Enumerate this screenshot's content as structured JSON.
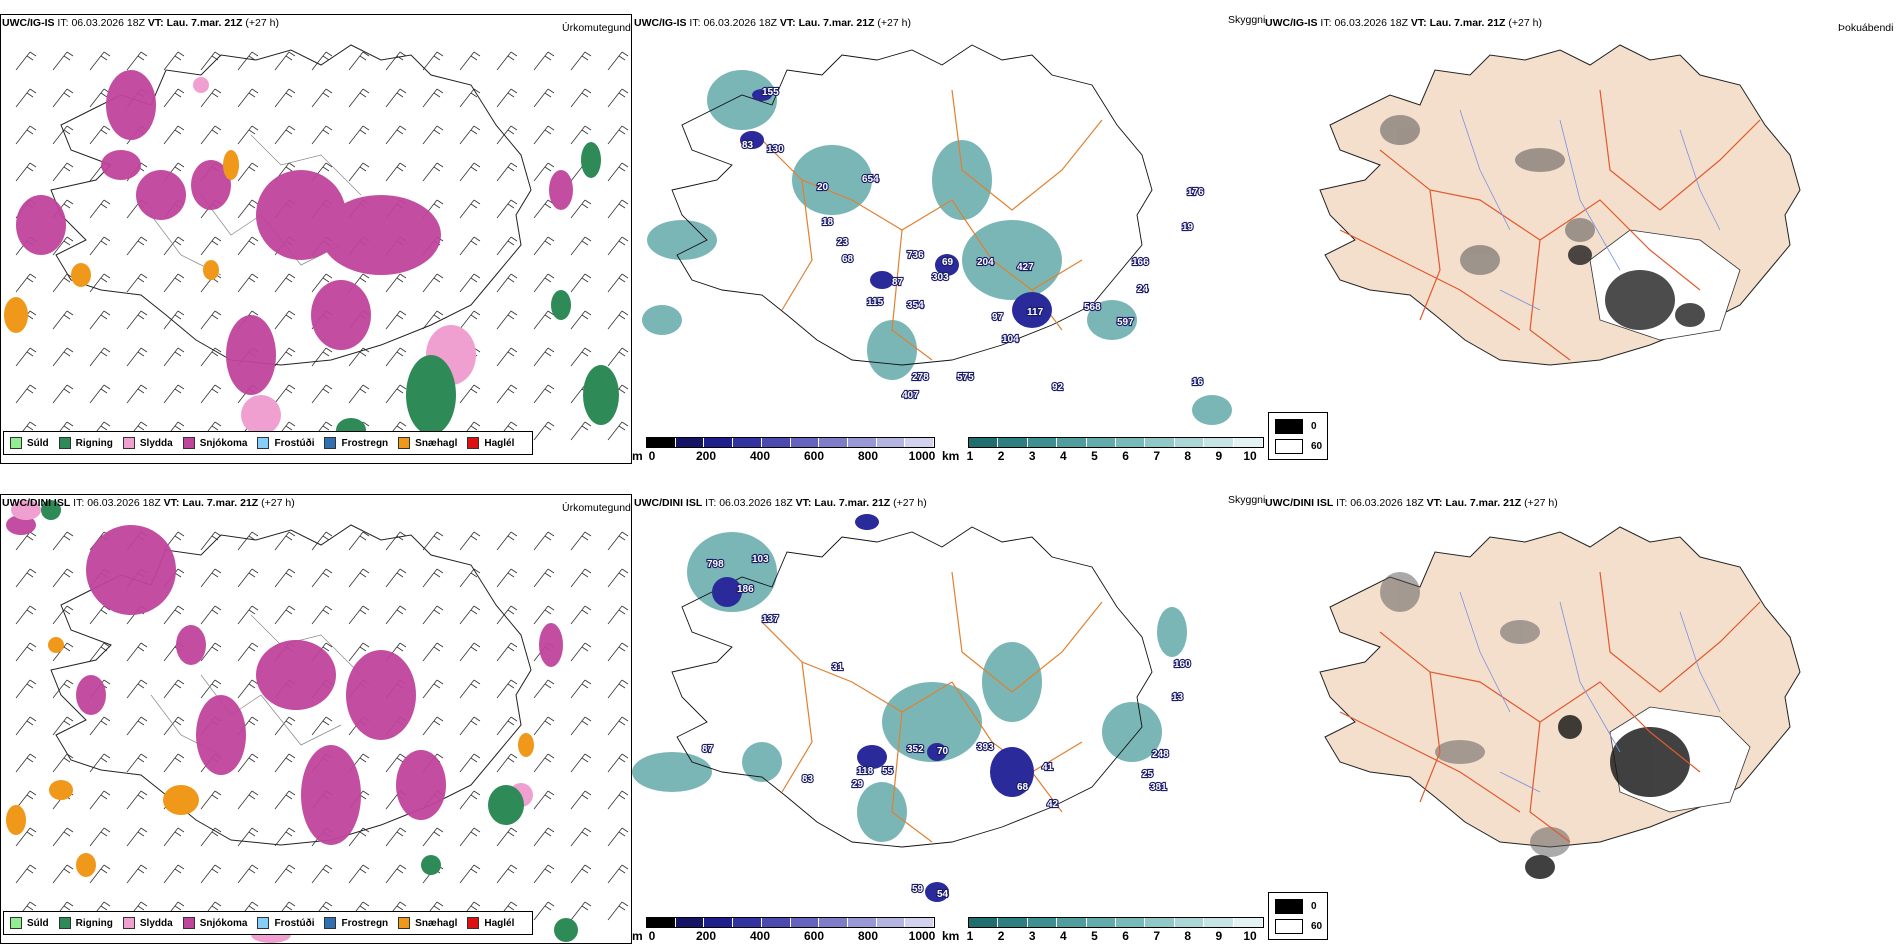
{
  "rows": [
    {
      "model": "UWC/IG-IS",
      "it_label": "IT:",
      "it_value": "06.03.2026 18Z",
      "vt_label": "VT:",
      "vt_value": "Lau. 7.mar. 21Z",
      "lead": "(+27 h)",
      "titles": {
        "precip": "Úrkomutegund",
        "cloud": "Skyggni",
        "fog": "Þokuábendi"
      },
      "labels": [
        "155",
        "83",
        "130",
        "20",
        "654",
        "18",
        "23",
        "68",
        "736",
        "69",
        "87",
        "303",
        "204",
        "427",
        "115",
        "354",
        "97",
        "117",
        "104",
        "568",
        "166",
        "597",
        "24",
        "278",
        "407",
        "575",
        "92",
        "16",
        "176",
        "19"
      ]
    },
    {
      "model": "UWC/DINI ISL",
      "it_label": "IT:",
      "it_value": "06.03.2026 18Z",
      "vt_label": "VT:",
      "vt_value": "Lau. 7.mar. 21Z",
      "lead": "(+27 h)",
      "titles": {
        "precip": "Úrkomutegund",
        "cloud": "Skyggni",
        "fog": "Þokuábendi"
      },
      "labels": [
        "798",
        "103",
        "186",
        "137",
        "31",
        "352",
        "70",
        "393",
        "55",
        "118",
        "29",
        "83",
        "87",
        "68",
        "42",
        "41",
        "25",
        "381",
        "248",
        "59",
        "54",
        "160",
        "13"
      ]
    }
  ],
  "precip_legend": [
    {
      "label": "Súld",
      "color": "#90ee90"
    },
    {
      "label": "Rigning",
      "color": "#2e8b57"
    },
    {
      "label": "Slydda",
      "color": "#f0a0d0"
    },
    {
      "label": "Snjókoma",
      "color": "#c0449c"
    },
    {
      "label": "Frostúði",
      "color": "#87cefa"
    },
    {
      "label": "Frostregn",
      "color": "#3070b0"
    },
    {
      "label": "Snæhagl",
      "color": "#f0981a"
    },
    {
      "label": "Haglél",
      "color": "#dd1111"
    }
  ],
  "cloud_base_bar": {
    "unit": "m",
    "ticks": [
      "0",
      "200",
      "400",
      "600",
      "800",
      "1000"
    ],
    "colors": [
      "#000000",
      "#151565",
      "#1e1e8c",
      "#3232a0",
      "#4a4ab0",
      "#6464be",
      "#7e7ec8",
      "#9898d4",
      "#b4b4e0",
      "#d2d2ee"
    ]
  },
  "visibility_bar": {
    "unit": "km",
    "ticks": [
      "1",
      "2",
      "3",
      "4",
      "5",
      "6",
      "7",
      "8",
      "9",
      "10"
    ],
    "colors": [
      "#1f6f6f",
      "#2e8080",
      "#3e9090",
      "#4f9e9e",
      "#62acac",
      "#78baba",
      "#90c8c8",
      "#aad6d6",
      "#c6e4e4",
      "#e3f2f2"
    ]
  },
  "fog_legend": [
    {
      "value": "0",
      "color": "#000000"
    },
    {
      "value": "60",
      "color": "#ffffff"
    }
  ],
  "icons": {
    "wind_barb": "wind-barb-icon"
  }
}
